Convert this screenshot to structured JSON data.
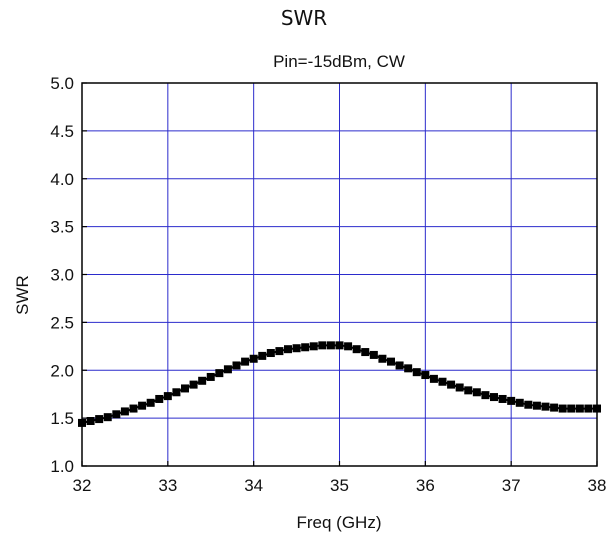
{
  "page": {
    "title": "SWR"
  },
  "chart_data": {
    "type": "line",
    "title": "SWR",
    "subtitle": "Pin=-15dBm, CW",
    "xlabel": "Freq (GHz)",
    "ylabel": "SWR",
    "xlim": [
      32,
      38
    ],
    "ylim": [
      1.0,
      5.0
    ],
    "xticks": [
      "32",
      "33",
      "34",
      "35",
      "36",
      "37",
      "38"
    ],
    "yticks": [
      "1.0",
      "1.5",
      "2.0",
      "2.5",
      "3.0",
      "3.5",
      "4.0",
      "4.5",
      "5.0"
    ],
    "grid": true,
    "colors": {
      "grid": "#2b2bcc",
      "marker": "#000000",
      "axes": "#000000"
    },
    "marker": "square",
    "series": [
      {
        "x": [
          32.0,
          32.1,
          32.2,
          32.3,
          32.4,
          32.5,
          32.6,
          32.7,
          32.8,
          32.9,
          33.0,
          33.1,
          33.2,
          33.3,
          33.4,
          33.5,
          33.6,
          33.7,
          33.8,
          33.9,
          34.0,
          34.1,
          34.2,
          34.3,
          34.4,
          34.5,
          34.6,
          34.7,
          34.8,
          34.9,
          35.0,
          35.1,
          35.2,
          35.3,
          35.4,
          35.5,
          35.6,
          35.7,
          35.8,
          35.9,
          36.0,
          36.1,
          36.2,
          36.3,
          36.4,
          36.5,
          36.6,
          36.7,
          36.8,
          36.9,
          37.0,
          37.1,
          37.2,
          37.3,
          37.4,
          37.5,
          37.6,
          37.7,
          37.8,
          37.9,
          38.0
        ],
        "values": [
          1.45,
          1.47,
          1.49,
          1.51,
          1.54,
          1.57,
          1.6,
          1.63,
          1.66,
          1.7,
          1.73,
          1.77,
          1.81,
          1.85,
          1.89,
          1.93,
          1.97,
          2.01,
          2.05,
          2.09,
          2.12,
          2.15,
          2.18,
          2.2,
          2.22,
          2.23,
          2.24,
          2.25,
          2.26,
          2.26,
          2.26,
          2.25,
          2.22,
          2.19,
          2.16,
          2.12,
          2.09,
          2.05,
          2.02,
          1.98,
          1.95,
          1.91,
          1.88,
          1.85,
          1.82,
          1.79,
          1.77,
          1.74,
          1.72,
          1.7,
          1.68,
          1.66,
          1.64,
          1.63,
          1.62,
          1.61,
          1.6,
          1.6,
          1.6,
          1.6,
          1.6
        ]
      }
    ]
  }
}
